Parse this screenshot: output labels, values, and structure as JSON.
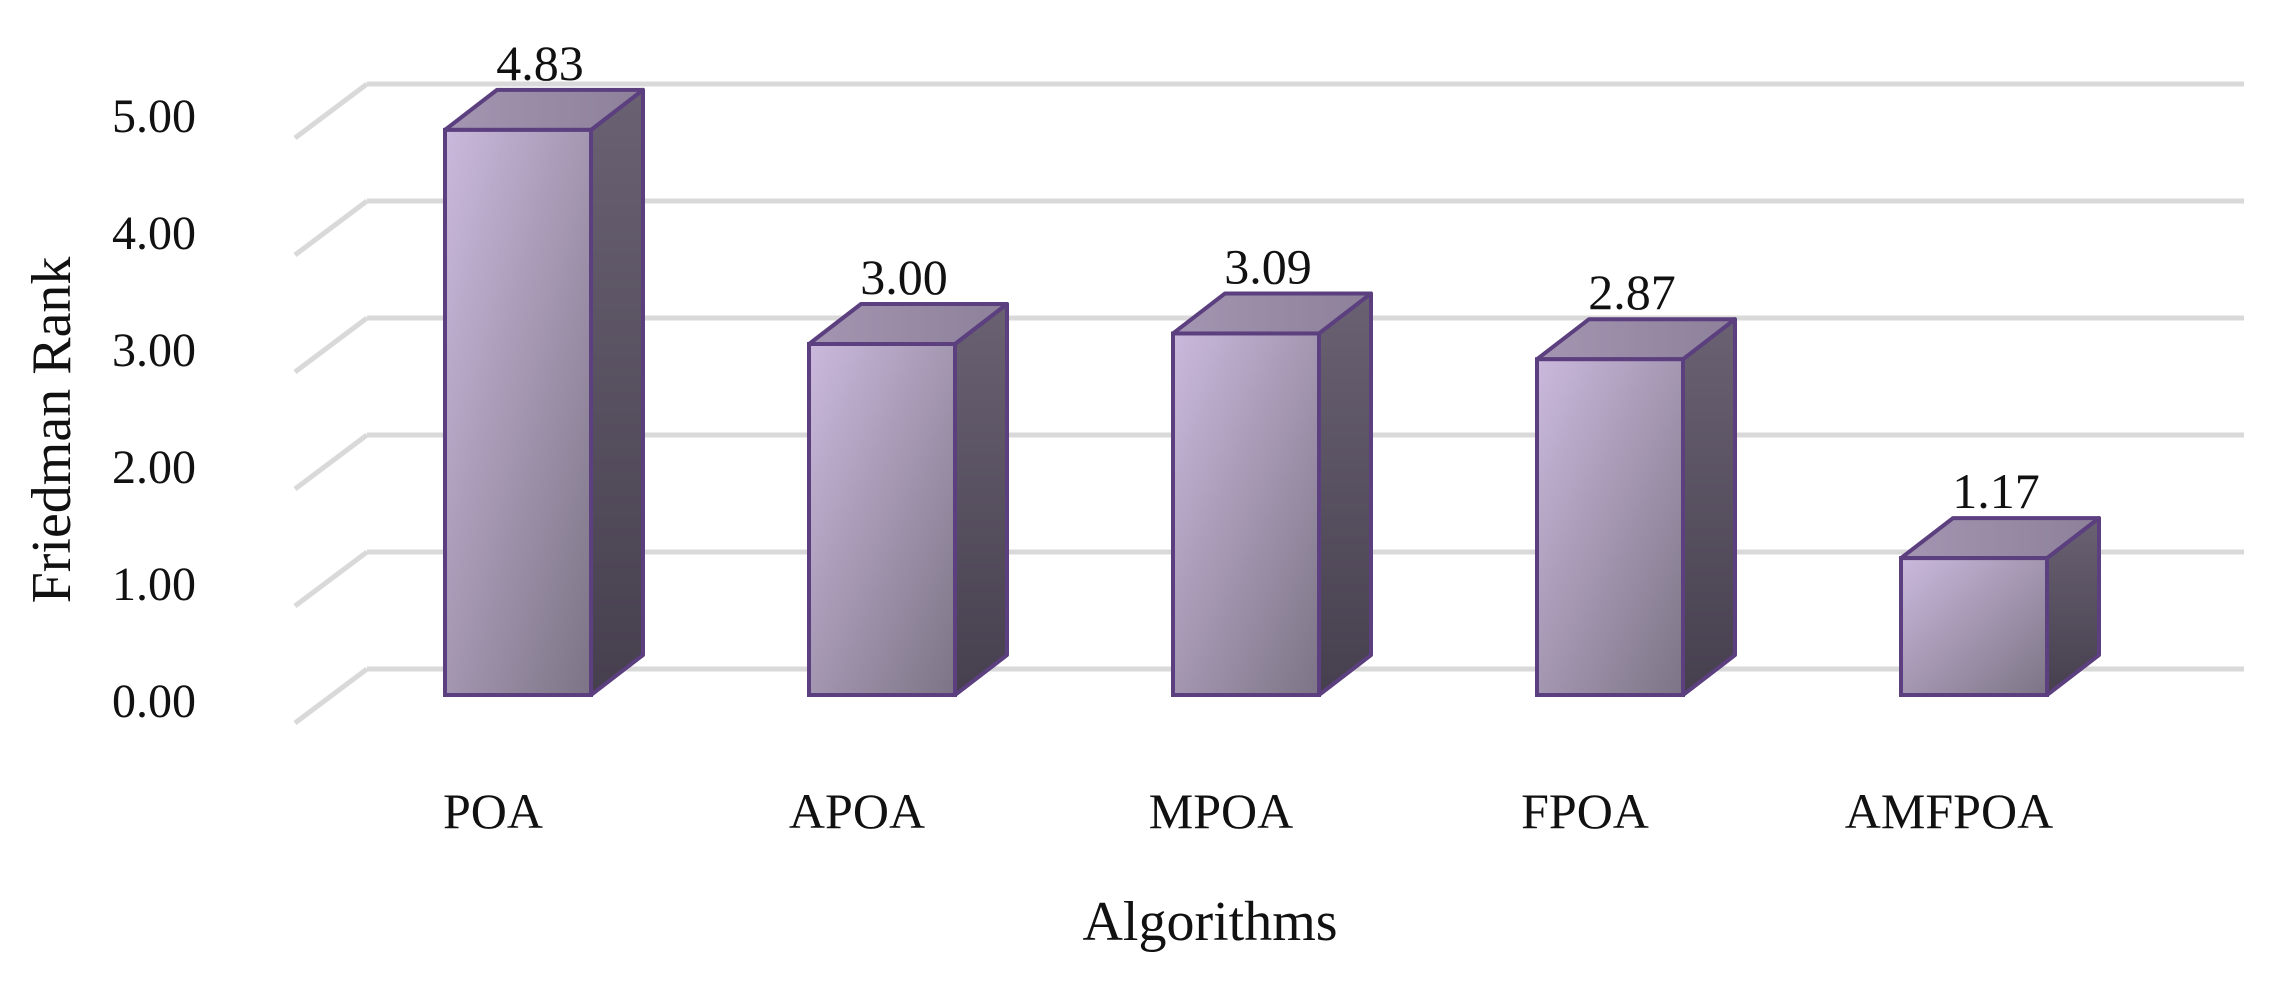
{
  "chart_data": {
    "type": "bar",
    "style": "3d-column",
    "categories": [
      "POA",
      "APOA",
      "MPOA",
      "FPOA",
      "AMFPOA"
    ],
    "values": [
      4.83,
      3.0,
      3.09,
      2.87,
      1.17
    ],
    "data_labels": [
      "4.83",
      "3.00",
      "3.09",
      "2.87",
      "1.17"
    ],
    "title": "",
    "xlabel": "Algorithms",
    "ylabel": "Friedman Rank",
    "ylim": [
      0,
      5
    ],
    "yticks": [
      "0.00",
      "1.00",
      "2.00",
      "3.00",
      "4.00",
      "5.00"
    ],
    "grid": true,
    "legend": "none",
    "colors": {
      "bar_front_light": "#cbb9dd",
      "bar_front_dark": "#7c7485",
      "bar_top": "#9a8ca8",
      "bar_side": "#4f4758",
      "bar_outline": "#5b3f7e",
      "grid": "#d9d9d9"
    }
  }
}
